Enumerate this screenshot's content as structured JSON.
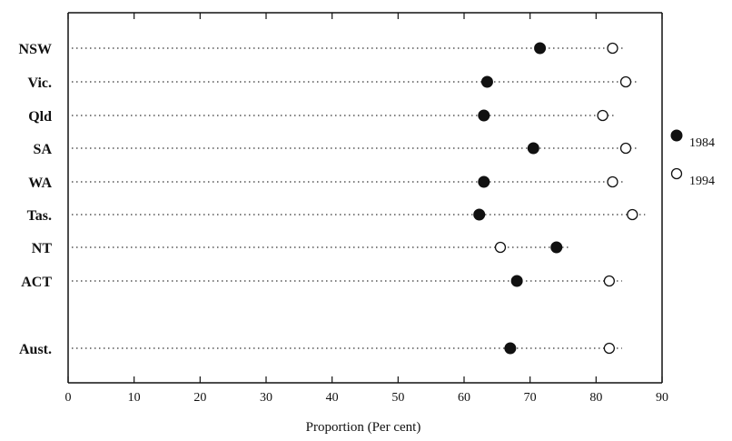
{
  "chart_data": {
    "type": "scatter",
    "title": "",
    "xlabel": "Proportion (Per cent)",
    "ylabel": "",
    "xlim": [
      0,
      90
    ],
    "xticks": [
      0,
      10,
      20,
      30,
      40,
      50,
      60,
      70,
      80,
      90
    ],
    "categories": [
      "NSW",
      "Vic.",
      "Qld",
      "SA",
      "WA",
      "Tas.",
      "NT",
      "ACT",
      "Aust."
    ],
    "series": [
      {
        "name": "1984",
        "marker": "filled-circle",
        "values": [
          71.5,
          63.5,
          63.0,
          70.5,
          63.0,
          62.3,
          74.0,
          68.0,
          67.0
        ]
      },
      {
        "name": "1994",
        "marker": "open-circle",
        "values": [
          82.5,
          84.5,
          81.0,
          84.5,
          82.5,
          85.5,
          65.5,
          82.0,
          82.0
        ]
      }
    ],
    "grid": false,
    "legend_position": "right",
    "colors": {
      "marker": "#111111",
      "axis": "#111111",
      "dots": "#333333"
    }
  }
}
